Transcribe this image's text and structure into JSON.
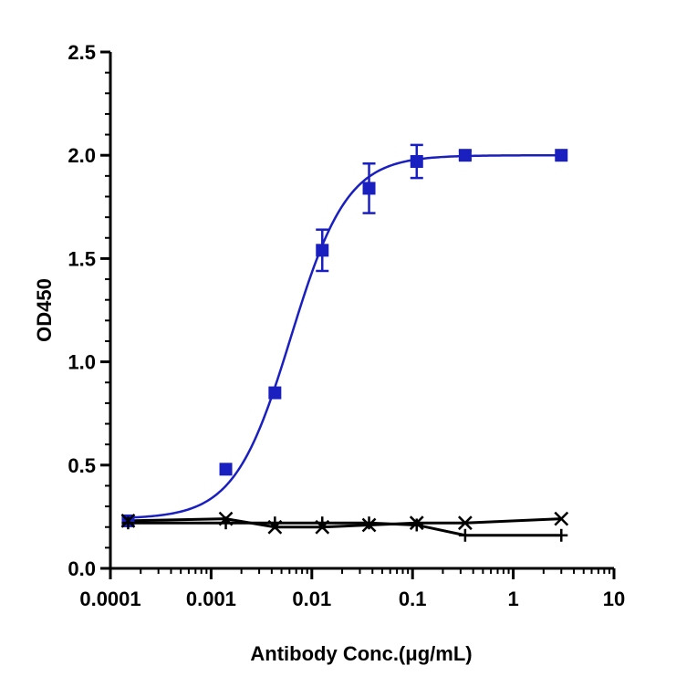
{
  "chart_data": {
    "type": "scatter",
    "title": "",
    "xlabel": "Antibody Conc.(μg/mL)",
    "ylabel": "OD450",
    "x_scale": "log",
    "xlim": [
      0.0001,
      10
    ],
    "ylim": [
      0.0,
      2.5
    ],
    "x_ticks": [
      "0.0001",
      "0.001",
      "0.01",
      "0.1",
      "1",
      "10"
    ],
    "y_ticks": [
      "0.0",
      "0.5",
      "1.0",
      "1.5",
      "2.0",
      "2.5"
    ],
    "grid": false,
    "legend": "none",
    "series": [
      {
        "marker": "square",
        "color": "#1a1fbf",
        "fit": "4PL",
        "points": [
          {
            "x": 0.00015,
            "y": 0.23,
            "err": 0.0
          },
          {
            "x": 0.0014,
            "y": 0.48,
            "err": 0.0
          },
          {
            "x": 0.0043,
            "y": 0.85,
            "err": 0.0
          },
          {
            "x": 0.0127,
            "y": 1.54,
            "err": 0.1
          },
          {
            "x": 0.037,
            "y": 1.84,
            "err": 0.12
          },
          {
            "x": 0.11,
            "y": 1.97,
            "err": 0.08
          },
          {
            "x": 0.333,
            "y": 2.0,
            "err": 0.02
          },
          {
            "x": 3.0,
            "y": 2.0,
            "err": 0.0
          }
        ]
      },
      {
        "marker": "x",
        "color": "#000000",
        "points": [
          {
            "x": 0.00015,
            "y": 0.23
          },
          {
            "x": 0.0014,
            "y": 0.24
          },
          {
            "x": 0.0043,
            "y": 0.2
          },
          {
            "x": 0.0127,
            "y": 0.2
          },
          {
            "x": 0.037,
            "y": 0.21
          },
          {
            "x": 0.11,
            "y": 0.22
          },
          {
            "x": 0.333,
            "y": 0.22
          },
          {
            "x": 3.0,
            "y": 0.24
          }
        ]
      },
      {
        "marker": "plus",
        "color": "#000000",
        "points": [
          {
            "x": 0.00015,
            "y": 0.22
          },
          {
            "x": 0.0014,
            "y": 0.22
          },
          {
            "x": 0.0043,
            "y": 0.22
          },
          {
            "x": 0.0127,
            "y": 0.22
          },
          {
            "x": 0.037,
            "y": 0.22
          },
          {
            "x": 0.11,
            "y": 0.21
          },
          {
            "x": 0.333,
            "y": 0.16
          },
          {
            "x": 3.0,
            "y": 0.16
          }
        ]
      }
    ]
  }
}
